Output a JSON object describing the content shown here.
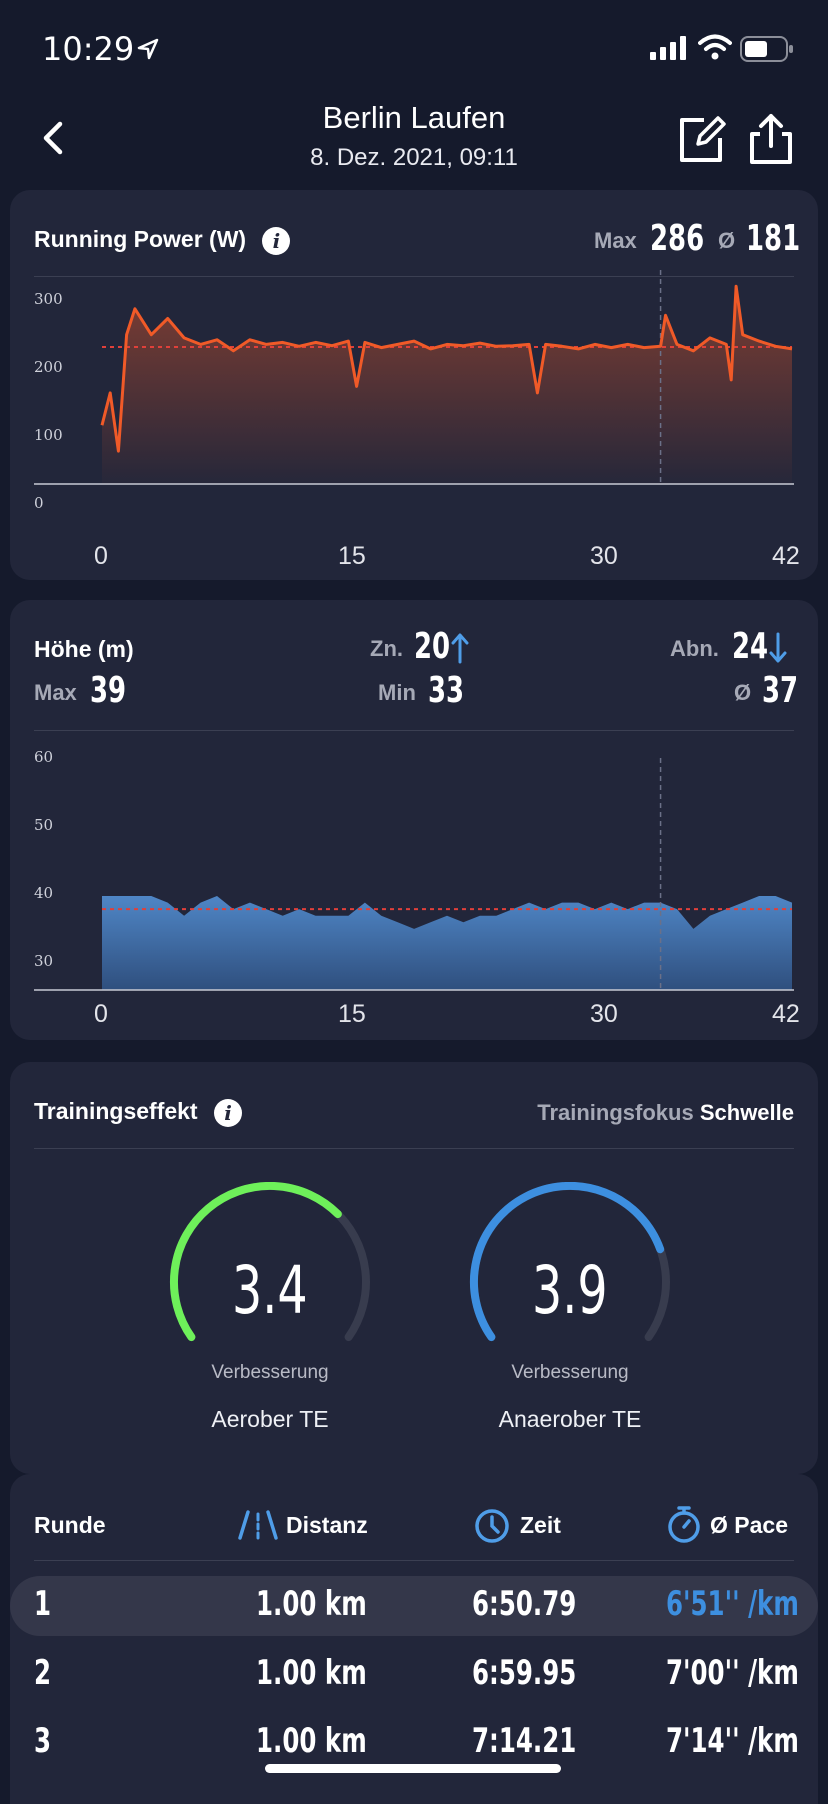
{
  "status_bar": {
    "time": "10:29"
  },
  "header": {
    "title": "Berlin Laufen",
    "subtitle": "8. Dez. 2021, 09:11"
  },
  "colors": {
    "background": "#151a2c",
    "card": "#22263a",
    "power_line": "#f05a28",
    "elevation_fill": "#4a7bb7",
    "aerobic": "#6ef05a",
    "anaerobic": "#3d8fe0",
    "accent_pace": "#3d8fe0"
  },
  "power_card": {
    "title": "Running Power (W)",
    "max_label": "Max",
    "max_value": "286",
    "avg_label": "Ø",
    "avg_value": "181",
    "y_ticks": [
      "300",
      "200",
      "100",
      "0"
    ],
    "x_ticks": [
      "0",
      "15",
      "30",
      "42"
    ]
  },
  "elevation_card": {
    "title": "Höhe (m)",
    "gain_label": "Zn.",
    "gain_value": "20",
    "loss_label": "Abn.",
    "loss_value": "24",
    "max_label": "Max",
    "max_value": "39",
    "min_label": "Min",
    "min_value": "33",
    "avg_label": "Ø",
    "avg_value": "37",
    "y_ticks": [
      "60",
      "50",
      "40",
      "30"
    ],
    "x_ticks": [
      "0",
      "15",
      "30",
      "42"
    ]
  },
  "chart_data": [
    {
      "type": "line",
      "ylim": [
        0,
        300
      ],
      "xlim": [
        0,
        42
      ],
      "avg_line": 181,
      "x": [
        0,
        0.5,
        1,
        1.5,
        2,
        3,
        4,
        5,
        6,
        7,
        8,
        9,
        10,
        11,
        12,
        13,
        14,
        15,
        15.5,
        16,
        17,
        18,
        19,
        20,
        21,
        22,
        23,
        24,
        25,
        26,
        26.5,
        27,
        28,
        29,
        30,
        31,
        32,
        33,
        34,
        34.3,
        35,
        36,
        37,
        38,
        38.3,
        38.6,
        39,
        40,
        41,
        42
      ],
      "values": [
        60,
        110,
        20,
        200,
        240,
        200,
        225,
        195,
        185,
        192,
        175,
        192,
        185,
        188,
        182,
        188,
        183,
        190,
        120,
        188,
        180,
        185,
        190,
        178,
        185,
        183,
        187,
        182,
        183,
        185,
        110,
        185,
        182,
        178,
        185,
        180,
        185,
        180,
        182,
        230,
        185,
        175,
        195,
        185,
        130,
        275,
        200,
        190,
        182,
        178
      ]
    },
    {
      "type": "area",
      "ylim": [
        25,
        60
      ],
      "xlim": [
        0,
        42
      ],
      "avg_line": 37,
      "x": [
        0,
        1,
        2,
        3,
        4,
        5,
        6,
        7,
        8,
        9,
        10,
        11,
        12,
        13,
        14,
        15,
        16,
        17,
        18,
        19,
        20,
        21,
        22,
        23,
        24,
        25,
        26,
        27,
        28,
        29,
        30,
        31,
        32,
        33,
        34,
        35,
        36,
        37,
        38,
        39,
        40,
        41,
        42
      ],
      "values": [
        39,
        39,
        39,
        39,
        38,
        36,
        38,
        39,
        37,
        38,
        37,
        36,
        37,
        36,
        36,
        36,
        38,
        36,
        35,
        34,
        35,
        36,
        35,
        36,
        36,
        37,
        38,
        37,
        38,
        38,
        37,
        38,
        37,
        38,
        38,
        37,
        34,
        36,
        37,
        38,
        39,
        39,
        38
      ]
    }
  ],
  "training_card": {
    "title": "Trainingseffekt",
    "focus_label": "Trainingsfokus",
    "focus_value": "Schwelle",
    "aerobic": {
      "value": 3.4,
      "value_text": "3.4",
      "status": "Verbesserung",
      "label": "Aerober TE",
      "max": 5
    },
    "anaerobic": {
      "value": 3.9,
      "value_text": "3.9",
      "status": "Verbesserung",
      "label": "Anaerober TE",
      "max": 5
    }
  },
  "laps_card": {
    "headers": {
      "lap": "Runde",
      "distance": "Distanz",
      "time": "Zeit",
      "pace": "Ø Pace"
    },
    "rows": [
      {
        "lap": "1",
        "distance": "1.00 km",
        "time": "6:50.79",
        "pace": "6'51'' /km"
      },
      {
        "lap": "2",
        "distance": "1.00 km",
        "time": "6:59.95",
        "pace": "7'00'' /km"
      },
      {
        "lap": "3",
        "distance": "1.00 km",
        "time": "7:14.21",
        "pace": "7'14'' /km"
      }
    ]
  }
}
